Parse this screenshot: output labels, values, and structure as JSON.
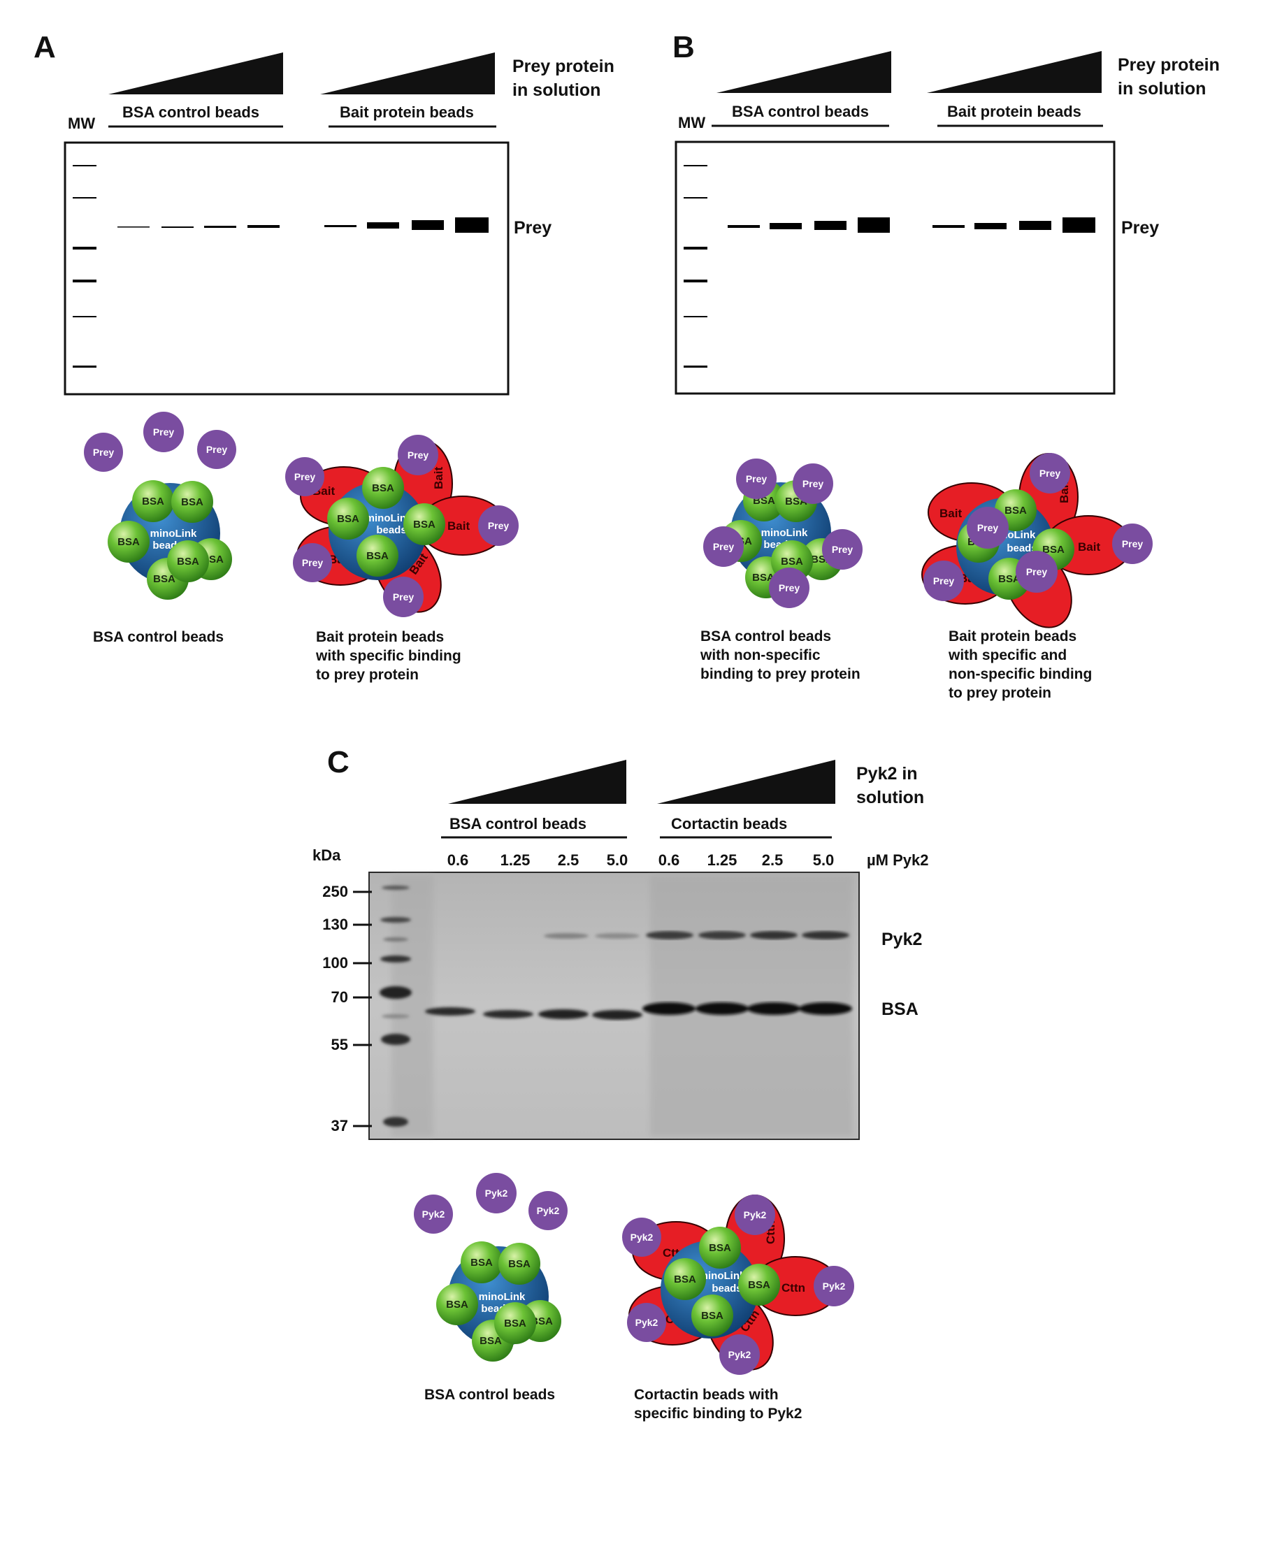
{
  "panelA": {
    "letter": "A",
    "prey_header_1": "Prey protein",
    "prey_header_2": "in solution",
    "bsa_group": "BSA control beads",
    "bait_group": "Bait protein beads",
    "mw": "MW",
    "prey_label": "Prey",
    "caption_bsa": [
      "BSA control beads"
    ],
    "caption_bait": [
      "Bait protein beads",
      "with specific binding",
      "to prey protein"
    ]
  },
  "panelB": {
    "letter": "B",
    "prey_header_1": "Prey protein",
    "prey_header_2": "in solution",
    "bsa_group": "BSA control beads",
    "bait_group": "Bait protein beads",
    "mw": "MW",
    "prey_label": "Prey",
    "caption_bsa": [
      "BSA control beads",
      "with non-specific",
      "binding to prey protein"
    ],
    "caption_bait": [
      "Bait protein beads",
      "with specific and",
      "non-specific binding",
      "to prey protein"
    ]
  },
  "panelC": {
    "letter": "C",
    "pyk_header_1": "Pyk2 in",
    "pyk_header_2": "solution",
    "bsa_group": "BSA control beads",
    "cttn_group": "Cortactin beads",
    "kda": "kDa",
    "conc_unit": "µM Pyk2",
    "concentrations": [
      "0.6",
      "1.25",
      "2.5",
      "5.0",
      "0.6",
      "1.25",
      "2.5",
      "5.0"
    ],
    "mw_ticks": [
      "250",
      "130",
      "100",
      "70",
      "55",
      "37"
    ],
    "band_pyk2": "Pyk2",
    "band_bsa": "BSA",
    "caption_bsa": [
      "BSA control beads"
    ],
    "caption_cttn": [
      "Cortactin beads with",
      "specific binding to Pyk2"
    ]
  },
  "beads": {
    "core_label_1": "minoLink",
    "core_label_2": "beads",
    "bsa": "BSA",
    "bait": "Bait",
    "prey": "Prey",
    "cttn": "Cttn",
    "pyk2": "Pyk2"
  },
  "colors": {
    "bsa_green": "#5cb82e",
    "bead_blue": "#1d5fa0",
    "bait_red": "#e61e25",
    "prey_purple": "#7a4da0",
    "gel_gray": "#bcbcbc"
  }
}
